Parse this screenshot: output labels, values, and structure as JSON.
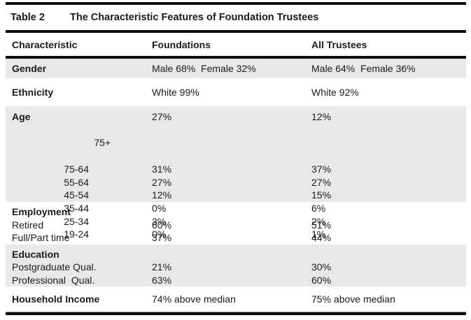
{
  "table": {
    "label": "Table 2",
    "title": "The Characteristic Features of Foundation Trustees",
    "columns": [
      "Characteristic",
      "Foundations",
      "All Trustees"
    ],
    "rows": [
      {
        "name": "Gender",
        "foundations": "Male 68%  Female 32%",
        "all_trustees": "Male 64%  Female 36%",
        "shaded": true
      },
      {
        "name": "Ethnicity",
        "foundations": "White 99%",
        "all_trustees": "White 92%",
        "shaded": false
      },
      {
        "name": "Age",
        "shaded": true,
        "sub_rows": [
          {
            "label": "75+",
            "foundations": "27%",
            "all_trustees": "12%"
          },
          {
            "label": "75-64",
            "foundations": "31%",
            "all_trustees": "37%"
          },
          {
            "label": "55-64",
            "foundations": "27%",
            "all_trustees": "27%"
          },
          {
            "label": "45-54",
            "foundations": "12%",
            "all_trustees": "15%"
          },
          {
            "label": "35-44",
            "foundations": "0%",
            "all_trustees": "6%"
          },
          {
            "label": "25-34",
            "foundations": "3%",
            "all_trustees": "2%"
          },
          {
            "label": "19-24",
            "foundations": "0%",
            "all_trustees": "1%"
          }
        ]
      },
      {
        "name": "Employment",
        "shaded": false,
        "sub_rows": [
          {
            "label": "Retired",
            "foundations": "60%",
            "all_trustees": "51%"
          },
          {
            "label": "Full/Part time",
            "foundations": "37%",
            "all_trustees": "44%"
          }
        ]
      },
      {
        "name": "Education",
        "shaded": true,
        "sub_rows": [
          {
            "label": "Postgraduate Qual.",
            "foundations": "21%",
            "all_trustees": "30%"
          },
          {
            "label": "Professional  Qual.",
            "foundations": "63%",
            "all_trustees": "60%"
          }
        ]
      },
      {
        "name": "Household Income",
        "foundations": "74% above median",
        "all_trustees": "75% above median",
        "shaded": false
      }
    ]
  },
  "colors": {
    "shaded_row": "#e8e8e8",
    "rule": "#0d0d0d",
    "text": "#1b1b1b"
  }
}
